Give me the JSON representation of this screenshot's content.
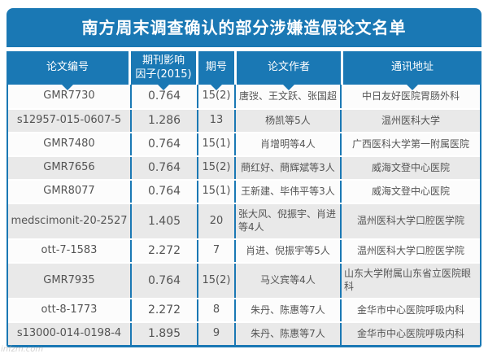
{
  "title": "南方周末调查确认的部分涉嫌造假论文名单",
  "watermark": "infzm.com",
  "colors": {
    "accent_blue": "#1a78b4",
    "row_bg": "#fcfcfc",
    "row_alt_bg": "#e9e9e9",
    "text_gray": "#545454"
  },
  "chart_data": {
    "type": "table",
    "title": "南方周末调查确认的部分涉嫌造假论文名单",
    "columns": [
      {
        "label": "论文编号",
        "lines": [
          "论文编号"
        ]
      },
      {
        "label": "期刊影响因子(2015)",
        "lines": [
          "期刊影响",
          "因子(2015)"
        ]
      },
      {
        "label": "期号",
        "lines": [
          "期号"
        ]
      },
      {
        "label": "论文作者",
        "lines": [
          "论文作者"
        ]
      },
      {
        "label": "通讯地址",
        "lines": [
          "通讯地址"
        ]
      }
    ],
    "rows": [
      {
        "paper_id": "GMR7730",
        "impact_factor": "0.764",
        "issue": "15(2)",
        "authors": "唐弢、王文跃、张国超",
        "address": "中日友好医院胃肠外科"
      },
      {
        "paper_id": "s12957-015-0607-5",
        "impact_factor": "1.286",
        "issue": "13",
        "authors": "杨凯等5人",
        "address": "温州医科大学"
      },
      {
        "paper_id": "GMR7480",
        "impact_factor": "0.764",
        "issue": "15(1)",
        "authors": "肖增明等4人",
        "address": "广西医科大学第一附属医院"
      },
      {
        "paper_id": "GMR7656",
        "impact_factor": "0.764",
        "issue": "15(2)",
        "authors": "蔄红好、蔄辉斌等3人",
        "address": "威海文登中心医院"
      },
      {
        "paper_id": "GMR8077",
        "impact_factor": "0.764",
        "issue": "15(1)",
        "authors": "王新建、毕伟平等3人",
        "address": "威海文登中心医院"
      },
      {
        "paper_id": "medscimonit-20-2527",
        "impact_factor": "1.405",
        "issue": "20",
        "authors": "张大风、倪振宇、肖进等4人",
        "address": "温州医科大学口腔医学院",
        "wrap": "authors"
      },
      {
        "paper_id": "ott-7-1583",
        "impact_factor": "2.272",
        "issue": "7",
        "authors": "肖进、倪振宇等5人",
        "address": "温州医科大学口腔医学院"
      },
      {
        "paper_id": "GMR7935",
        "impact_factor": "0.764",
        "issue": "15(2)",
        "authors": "马义宾等4人",
        "address": "山东大学附属山东省立医院眼科",
        "wrap": "address"
      },
      {
        "paper_id": "ott-8-1773",
        "impact_factor": "2.272",
        "issue": "8",
        "authors": "朱丹、陈惠等7人",
        "address": "金华市中心医院呼吸内科"
      },
      {
        "paper_id": "s13000-014-0198-4",
        "impact_factor": "1.895",
        "issue": "9",
        "authors": "朱丹、陈惠等7人",
        "address": "金华市中心医院呼吸内科"
      }
    ]
  }
}
